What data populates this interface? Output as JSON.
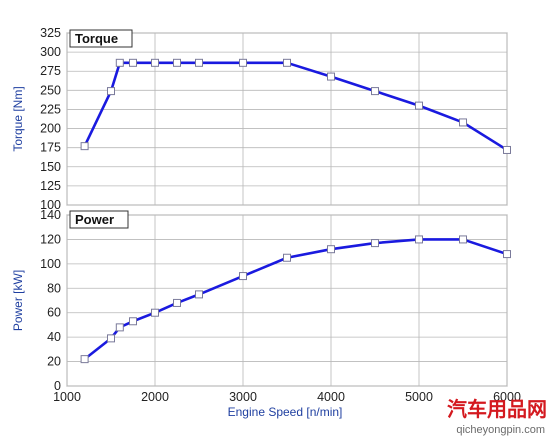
{
  "chart_data": [
    {
      "type": "line",
      "title": "Torque",
      "ylabel": "Torque [Nm]",
      "xlabel": "",
      "xlim": [
        1000,
        6000
      ],
      "ylim": [
        100,
        325
      ],
      "xticks": [
        1000,
        2000,
        3000,
        4000,
        5000,
        6000
      ],
      "yticks": [
        100,
        125,
        150,
        175,
        200,
        225,
        250,
        275,
        300,
        325
      ],
      "grid": true,
      "series": [
        {
          "x": [
            1200,
            1500,
            1600,
            1750,
            2000,
            2250,
            2500,
            3000,
            3500,
            4000,
            4500,
            5000,
            5500,
            6000
          ],
          "y": [
            177,
            249,
            286,
            286,
            286,
            286,
            286,
            286,
            286,
            268,
            249,
            230,
            208,
            172
          ]
        }
      ]
    },
    {
      "type": "line",
      "title": "Power",
      "ylabel": "Power [kW]",
      "xlabel": "Engine Speed [n/min]",
      "xlim": [
        1000,
        6000
      ],
      "ylim": [
        0,
        140
      ],
      "xticks": [
        1000,
        2000,
        3000,
        4000,
        5000,
        6000
      ],
      "yticks": [
        0,
        20,
        40,
        60,
        80,
        100,
        120,
        140
      ],
      "grid": true,
      "series": [
        {
          "x": [
            1200,
            1500,
            1600,
            1750,
            2000,
            2250,
            2500,
            3000,
            3500,
            4000,
            4500,
            5000,
            5500,
            6000
          ],
          "y": [
            22,
            39,
            48,
            53,
            60,
            68,
            75,
            90,
            105,
            112,
            117,
            120,
            120,
            108
          ]
        }
      ]
    }
  ],
  "style": {
    "line_color": "#1a1adf",
    "marker_fill": "#ffffff",
    "grid_color": "#b8b8b8",
    "axis_title_color": "#1f3fa0"
  },
  "watermark": {
    "main": "汽车用品网",
    "sub": "qicheyongpin.com"
  }
}
